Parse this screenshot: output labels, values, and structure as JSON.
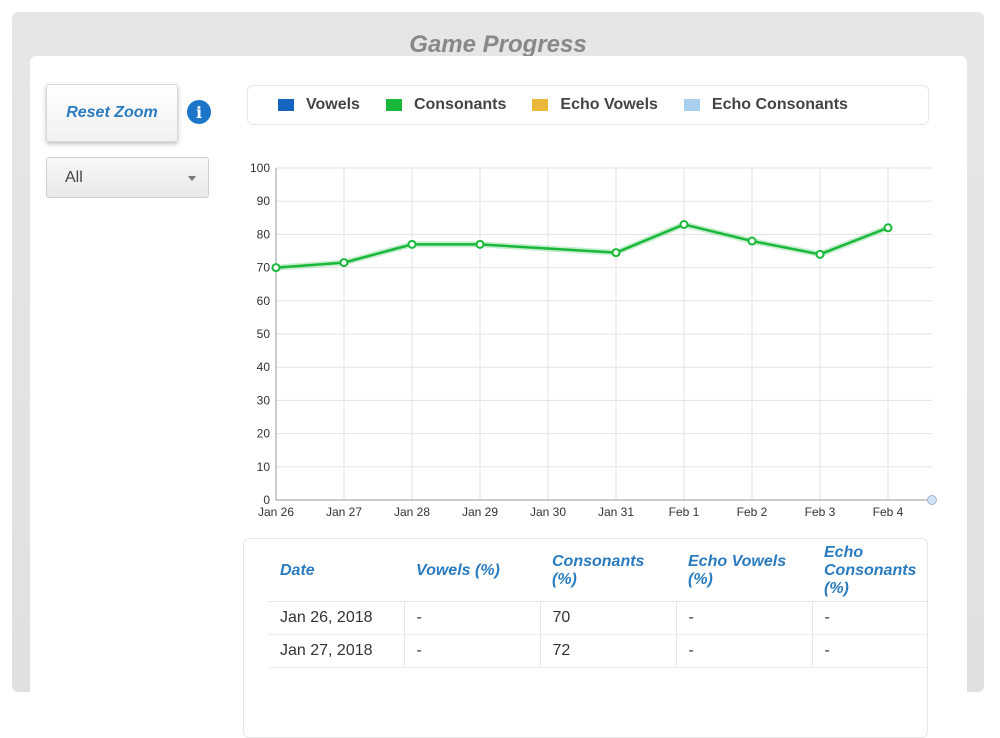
{
  "header": {
    "title": "Game Progress"
  },
  "controls": {
    "reset_zoom_label": "Reset Zoom",
    "info_icon": "info-icon",
    "filter_selected": "All"
  },
  "legend": [
    {
      "label": "Vowels",
      "color": "#1565c0"
    },
    {
      "label": "Consonants",
      "color": "#1ab83a"
    },
    {
      "label": "Echo Vowels",
      "color": "#eab83a"
    },
    {
      "label": "Echo Consonants",
      "color": "#aad0f0"
    }
  ],
  "chart_data": {
    "type": "line",
    "categories": [
      "Jan 26",
      "Jan 27",
      "Jan 28",
      "Jan 29",
      "Jan 30",
      "Jan 31",
      "Feb 1",
      "Feb 2",
      "Feb 3",
      "Feb 4"
    ],
    "y_ticks": [
      "0",
      "10",
      "20",
      "30",
      "40",
      "50",
      "60",
      "70",
      "80",
      "90",
      "100"
    ],
    "ylim": [
      0,
      100
    ],
    "grid": true,
    "series": [
      {
        "name": "Consonants",
        "color": "#1ab83a",
        "points": [
          {
            "x": "Jan 26",
            "y": 70
          },
          {
            "x": "Jan 27",
            "y": 71.5
          },
          {
            "x": "Jan 28",
            "y": 77
          },
          {
            "x": "Jan 29",
            "y": 77
          },
          {
            "x": "Jan 31",
            "y": 74.5
          },
          {
            "x": "Feb 1",
            "y": 83
          },
          {
            "x": "Feb 2",
            "y": 78
          },
          {
            "x": "Feb 3",
            "y": 74
          },
          {
            "x": "Feb 4",
            "y": 82
          }
        ]
      }
    ]
  },
  "table": {
    "headers": [
      "Date",
      "Vowels (%)",
      "Consonants (%)",
      "Echo Vowels (%)",
      "Echo Consonants (%)"
    ],
    "rows": [
      [
        "Jan 26, 2018",
        "-",
        "70",
        "-",
        "-"
      ],
      [
        "Jan 27, 2018",
        "-",
        "72",
        "-",
        "-"
      ]
    ]
  }
}
